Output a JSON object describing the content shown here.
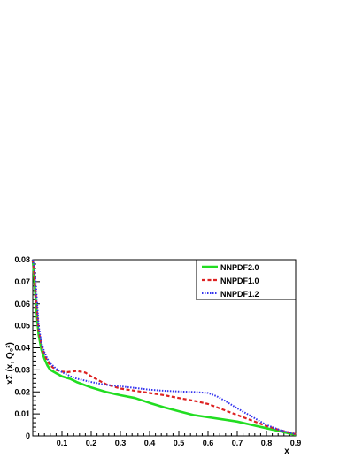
{
  "chart_data": {
    "type": "line",
    "xlabel": "x",
    "ylabel": "xΣ (x, Q₀²)",
    "xlim": [
      0.0,
      0.9
    ],
    "ylim": [
      0.0,
      0.08
    ],
    "x_ticks": [
      {
        "value": 0.1,
        "label": "0.1"
      },
      {
        "value": 0.2,
        "label": "0.2"
      },
      {
        "value": 0.3,
        "label": "0.3"
      },
      {
        "value": 0.4,
        "label": "0.4"
      },
      {
        "value": 0.5,
        "label": "0.5"
      },
      {
        "value": 0.6,
        "label": "0.6"
      },
      {
        "value": 0.7,
        "label": "0.7"
      },
      {
        "value": 0.8,
        "label": "0.8"
      },
      {
        "value": 0.9,
        "label": "0.9"
      }
    ],
    "y_ticks": [
      {
        "value": 0.0,
        "label": "0"
      },
      {
        "value": 0.01,
        "label": "0.01"
      },
      {
        "value": 0.02,
        "label": "0.02"
      },
      {
        "value": 0.03,
        "label": "0.03"
      },
      {
        "value": 0.04,
        "label": "0.04"
      },
      {
        "value": 0.05,
        "label": "0.05"
      },
      {
        "value": 0.06,
        "label": "0.06"
      },
      {
        "value": 0.07,
        "label": "0.07"
      },
      {
        "value": 0.08,
        "label": "0.08"
      }
    ],
    "grid": false,
    "legend_position": "top-right",
    "series": [
      {
        "name": "NNPDF2.0",
        "color": "#22dd22",
        "style": "solid",
        "x": [
          0.0,
          0.005,
          0.01,
          0.015,
          0.02,
          0.03,
          0.04,
          0.05,
          0.06,
          0.08,
          0.1,
          0.13,
          0.15,
          0.2,
          0.25,
          0.3,
          0.35,
          0.4,
          0.45,
          0.5,
          0.55,
          0.6,
          0.65,
          0.7,
          0.75,
          0.8,
          0.85,
          0.9
        ],
        "y": [
          0.08,
          0.072,
          0.062,
          0.053,
          0.046,
          0.039,
          0.035,
          0.032,
          0.03,
          0.0285,
          0.027,
          0.0258,
          0.0245,
          0.022,
          0.02,
          0.0185,
          0.0172,
          0.015,
          0.013,
          0.0112,
          0.0095,
          0.0085,
          0.0075,
          0.0065,
          0.005,
          0.0035,
          0.002,
          0.0005
        ]
      },
      {
        "name": "NNPDF1.0",
        "color": "#dd2222",
        "style": "dashed",
        "x": [
          0.0,
          0.005,
          0.01,
          0.015,
          0.02,
          0.03,
          0.04,
          0.05,
          0.06,
          0.08,
          0.1,
          0.12,
          0.15,
          0.18,
          0.2,
          0.25,
          0.3,
          0.35,
          0.4,
          0.45,
          0.5,
          0.55,
          0.6,
          0.65,
          0.7,
          0.75,
          0.8,
          0.85,
          0.9
        ],
        "y": [
          0.08,
          0.074,
          0.065,
          0.056,
          0.048,
          0.041,
          0.037,
          0.034,
          0.032,
          0.03,
          0.0292,
          0.029,
          0.0295,
          0.0288,
          0.027,
          0.0235,
          0.0215,
          0.0205,
          0.0195,
          0.0185,
          0.0172,
          0.016,
          0.0145,
          0.012,
          0.0095,
          0.007,
          0.0045,
          0.0025,
          0.0008
        ]
      },
      {
        "name": "NNPDF1.2",
        "color": "#3333ee",
        "style": "dotted",
        "x": [
          0.0,
          0.005,
          0.01,
          0.015,
          0.02,
          0.03,
          0.04,
          0.05,
          0.06,
          0.08,
          0.1,
          0.13,
          0.15,
          0.2,
          0.25,
          0.3,
          0.35,
          0.4,
          0.45,
          0.5,
          0.55,
          0.6,
          0.63,
          0.66,
          0.7,
          0.75,
          0.8,
          0.85,
          0.9
        ],
        "y": [
          0.08,
          0.077,
          0.07,
          0.06,
          0.05,
          0.042,
          0.038,
          0.035,
          0.033,
          0.0305,
          0.029,
          0.027,
          0.026,
          0.0245,
          0.0232,
          0.0225,
          0.0218,
          0.021,
          0.0205,
          0.0202,
          0.02,
          0.0195,
          0.018,
          0.0158,
          0.0125,
          0.0088,
          0.005,
          0.0025,
          0.0008
        ]
      }
    ]
  }
}
